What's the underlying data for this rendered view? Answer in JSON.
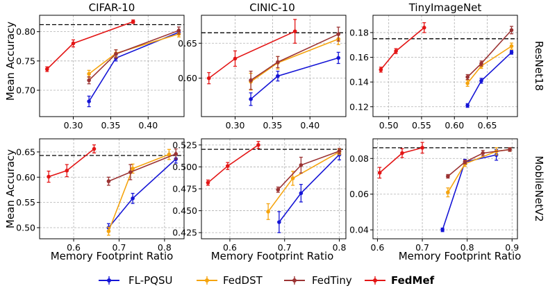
{
  "figure": {
    "xlabel": "Memory Footprint Ratio",
    "ylabel": "Mean Accuracy"
  },
  "legend": [
    {
      "name": "FL-PQSU",
      "color": "#1515d6",
      "bold": false
    },
    {
      "name": "FedDST",
      "color": "#f5a40e",
      "bold": false
    },
    {
      "name": "FedTiny",
      "color": "#9b3333",
      "bold": false
    },
    {
      "name": "FedMef",
      "color": "#e31515",
      "bold": true
    }
  ],
  "chart_data": [
    {
      "type": "line",
      "title": "CIFAR-10",
      "row_label": "ResNet18",
      "xlim": [
        0.255,
        0.448
      ],
      "ylim": [
        0.655,
        0.828
      ],
      "xticks": [
        0.3,
        0.35,
        0.4
      ],
      "xtick_labels": [
        "0.30",
        "0.35",
        "0.40"
      ],
      "yticks": [
        0.7,
        0.75,
        0.8
      ],
      "ytick_labels": [
        "0.70",
        "0.75",
        "0.80"
      ],
      "baseline": 0.812,
      "series": [
        {
          "name": "FL-PQSU",
          "x": [
            0.321,
            0.357,
            0.441
          ],
          "y": [
            0.681,
            0.755,
            0.799
          ],
          "err": [
            0.009,
            0.005,
            0.003
          ]
        },
        {
          "name": "FedDST",
          "x": [
            0.321,
            0.357,
            0.441
          ],
          "y": [
            0.728,
            0.763,
            0.796
          ],
          "err": [
            0.006,
            0.006,
            0.005
          ]
        },
        {
          "name": "FedTiny",
          "x": [
            0.321,
            0.357,
            0.441
          ],
          "y": [
            0.717,
            0.762,
            0.802
          ],
          "err": [
            0.006,
            0.007,
            0.006
          ]
        },
        {
          "name": "FedMef",
          "x": [
            0.265,
            0.3,
            0.38
          ],
          "y": [
            0.736,
            0.78,
            0.817
          ],
          "err": [
            0.004,
            0.006,
            0.003
          ]
        }
      ]
    },
    {
      "type": "line",
      "title": "CINIC-10",
      "row_label": "",
      "xlim": [
        0.255,
        0.448
      ],
      "ylim": [
        0.545,
        0.69
      ],
      "xticks": [
        0.3,
        0.35,
        0.4
      ],
      "xtick_labels": [
        "0.30",
        "0.35",
        "0.40"
      ],
      "yticks": [
        0.6,
        0.65
      ],
      "ytick_labels": [
        "0.60",
        "0.65"
      ],
      "baseline": 0.665,
      "series": [
        {
          "name": "FL-PQSU",
          "x": [
            0.321,
            0.357,
            0.438
          ],
          "y": [
            0.57,
            0.603,
            0.629
          ],
          "err": [
            0.009,
            0.007,
            0.008
          ]
        },
        {
          "name": "FedDST",
          "x": [
            0.321,
            0.357,
            0.438
          ],
          "y": [
            0.595,
            0.622,
            0.656
          ],
          "err": [
            0.012,
            0.009,
            0.008
          ]
        },
        {
          "name": "FedTiny",
          "x": [
            0.321,
            0.357,
            0.438
          ],
          "y": [
            0.597,
            0.623,
            0.663
          ],
          "err": [
            0.013,
            0.008,
            0.01
          ]
        },
        {
          "name": "FedMef",
          "x": [
            0.265,
            0.3,
            0.38
          ],
          "y": [
            0.6,
            0.628,
            0.667
          ],
          "err": [
            0.008,
            0.011,
            0.017
          ]
        }
      ]
    },
    {
      "type": "line",
      "title": "TinyImageNet",
      "row_label": "ResNet18",
      "xlim": [
        0.476,
        0.696
      ],
      "ylim": [
        0.112,
        0.194
      ],
      "xticks": [
        0.5,
        0.55,
        0.6,
        0.65
      ],
      "xtick_labels": [
        "0.50",
        "0.55",
        "0.60",
        "0.65"
      ],
      "yticks": [
        0.12,
        0.14,
        0.16,
        0.18
      ],
      "ytick_labels": [
        "0.12",
        "0.14",
        "0.16",
        "0.18"
      ],
      "baseline": 0.175,
      "series": [
        {
          "name": "FL-PQSU",
          "x": [
            0.62,
            0.641,
            0.687
          ],
          "y": [
            0.121,
            0.141,
            0.164
          ],
          "err": [
            0.0015,
            0.002,
            0.0015
          ]
        },
        {
          "name": "FedDST",
          "x": [
            0.62,
            0.641,
            0.687
          ],
          "y": [
            0.139,
            0.153,
            0.169
          ],
          "err": [
            0.0025,
            0.002,
            0.0025
          ]
        },
        {
          "name": "FedTiny",
          "x": [
            0.62,
            0.641,
            0.687
          ],
          "y": [
            0.144,
            0.155,
            0.182
          ],
          "err": [
            0.002,
            0.002,
            0.003
          ]
        },
        {
          "name": "FedMef",
          "x": [
            0.488,
            0.511,
            0.554
          ],
          "y": [
            0.15,
            0.165,
            0.184
          ],
          "err": [
            0.002,
            0.002,
            0.004
          ]
        }
      ]
    },
    {
      "type": "line",
      "title": "",
      "row_label": "",
      "xlim": [
        0.525,
        0.843
      ],
      "ylim": [
        0.478,
        0.676
      ],
      "xticks": [
        0.6,
        0.7,
        0.8
      ],
      "xtick_labels": [
        "0.6",
        "0.7",
        "0.8"
      ],
      "yticks": [
        0.5,
        0.55,
        0.6,
        0.65
      ],
      "ytick_labels": [
        "0.50",
        "0.55",
        "0.60",
        "0.65"
      ],
      "baseline": 0.643,
      "series": [
        {
          "name": "FL-PQSU",
          "x": [
            0.677,
            0.73,
            0.825
          ],
          "y": [
            0.5,
            0.558,
            0.636
          ],
          "err": [
            0.008,
            0.01,
            0.008
          ]
        },
        {
          "name": "FedDST",
          "x": [
            0.677,
            0.73,
            0.81
          ],
          "y": [
            0.493,
            0.617,
            0.645
          ],
          "err": [
            0.008,
            0.009,
            0.01
          ]
        },
        {
          "name": "FedTiny",
          "x": [
            0.677,
            0.725,
            0.825
          ],
          "y": [
            0.592,
            0.61,
            0.646
          ],
          "err": [
            0.008,
            0.015,
            0.01
          ]
        },
        {
          "name": "FedMef",
          "x": [
            0.545,
            0.585,
            0.645
          ],
          "y": [
            0.601,
            0.613,
            0.656
          ],
          "err": [
            0.011,
            0.012,
            0.008
          ]
        }
      ]
    },
    {
      "type": "line",
      "title": "",
      "row_label": "",
      "xlim": [
        0.548,
        0.812
      ],
      "ylim": [
        0.418,
        0.532
      ],
      "xticks": [
        0.6,
        0.7,
        0.8
      ],
      "xtick_labels": [
        "0.6",
        "0.7",
        "0.8"
      ],
      "yticks": [
        0.425,
        0.45,
        0.475,
        0.5,
        0.525
      ],
      "ytick_labels": [
        "0.425",
        "0.450",
        "0.475",
        "0.500",
        "0.525"
      ],
      "baseline": 0.52,
      "series": [
        {
          "name": "FL-PQSU",
          "x": [
            0.69,
            0.73,
            0.8
          ],
          "y": [
            0.437,
            0.47,
            0.514
          ],
          "err": [
            0.012,
            0.01,
            0.006
          ]
        },
        {
          "name": "FedDST",
          "x": [
            0.67,
            0.715,
            0.8
          ],
          "y": [
            0.449,
            0.487,
            0.517
          ],
          "err": [
            0.009,
            0.008,
            0.003
          ]
        },
        {
          "name": "FedTiny",
          "x": [
            0.688,
            0.73,
            0.8
          ],
          "y": [
            0.474,
            0.502,
            0.518
          ],
          "err": [
            0.003,
            0.009,
            0.003
          ]
        },
        {
          "name": "FedMef",
          "x": [
            0.56,
            0.596,
            0.652
          ],
          "y": [
            0.482,
            0.501,
            0.525
          ],
          "err": [
            0.003,
            0.004,
            0.004
          ]
        }
      ]
    },
    {
      "type": "line",
      "title": "",
      "row_label": "MobileNetV2",
      "xlim": [
        0.59,
        0.912
      ],
      "ylim": [
        0.035,
        0.091
      ],
      "xticks": [
        0.6,
        0.7,
        0.8,
        0.9
      ],
      "xtick_labels": [
        "0.6",
        "0.7",
        "0.8",
        "0.9"
      ],
      "yticks": [
        0.04,
        0.06,
        0.08
      ],
      "ytick_labels": [
        "0.04",
        "0.06",
        "0.08"
      ],
      "baseline": 0.086,
      "series": [
        {
          "name": "FL-PQSU",
          "x": [
            0.745,
            0.795,
            0.865
          ],
          "y": [
            0.04,
            0.078,
            0.082
          ],
          "err": [
            0.001,
            0.0015,
            0.003
          ]
        },
        {
          "name": "FedDST",
          "x": [
            0.757,
            0.795,
            0.865,
            0.895
          ],
          "y": [
            0.061,
            0.077,
            0.084,
            0.085
          ],
          "err": [
            0.0025,
            0.0015,
            0.002,
            0.001
          ]
        },
        {
          "name": "FedTiny",
          "x": [
            0.757,
            0.795,
            0.835,
            0.895
          ],
          "y": [
            0.07,
            0.078,
            0.083,
            0.085
          ],
          "err": [
            0.001,
            0.001,
            0.0015,
            0.001
          ]
        },
        {
          "name": "FedMef",
          "x": [
            0.605,
            0.655,
            0.7
          ],
          "y": [
            0.072,
            0.083,
            0.086
          ],
          "err": [
            0.003,
            0.0025,
            0.003
          ]
        }
      ]
    }
  ]
}
